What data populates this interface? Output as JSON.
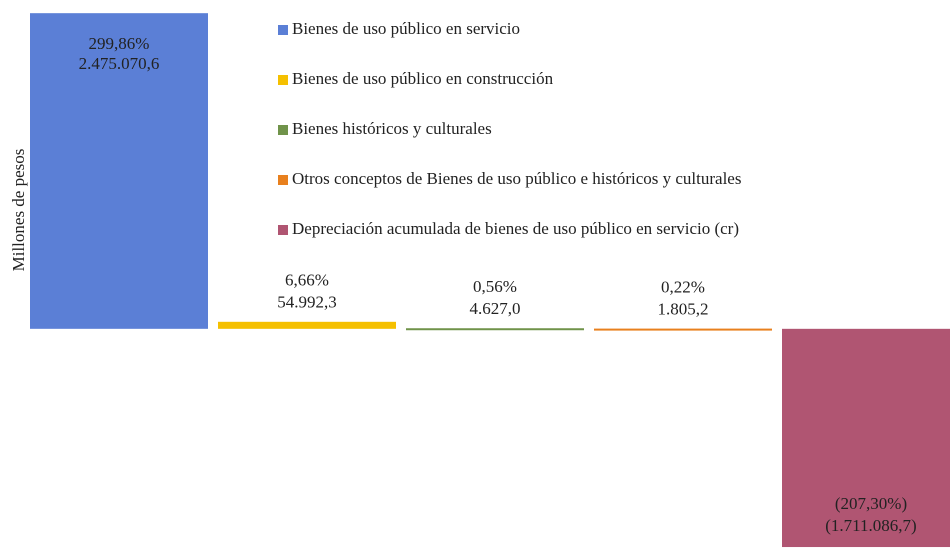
{
  "chart_data": {
    "type": "bar",
    "y_label": "Millones  de pesos",
    "series": [
      {
        "name": "Bienes de uso público en servicio",
        "color": "#5b7fd6",
        "values": [
          2475070.6
        ],
        "value_labels": [
          "2.475.070,6"
        ],
        "percent_labels": [
          "299,86%"
        ]
      },
      {
        "name": "Bienes de uso público en construcción",
        "color": "#f5c000",
        "values": [
          54992.3
        ],
        "value_labels": [
          "54.992,3"
        ],
        "percent_labels": [
          "6,66%"
        ]
      },
      {
        "name": "Bienes históricos y culturales",
        "color": "#70934a",
        "values": [
          4627.0
        ],
        "value_labels": [
          "4.627,0"
        ],
        "percent_labels": [
          "0,56%"
        ]
      },
      {
        "name": "Otros conceptos de Bienes de uso público e históricos y culturales",
        "color": "#e8801e",
        "values": [
          1805.2
        ],
        "value_labels": [
          "1.805,2"
        ],
        "percent_labels": [
          "0,22%"
        ]
      },
      {
        "name": "Depreciación acumulada de bienes de uso público en servicio (cr)",
        "color": "#b05572",
        "values": [
          -1711086.7
        ],
        "value_labels": [
          "(1.711.086,7)"
        ],
        "percent_labels": [
          "(207,30%)"
        ]
      }
    ],
    "ylim": [
      -1750000,
      2500000
    ]
  }
}
